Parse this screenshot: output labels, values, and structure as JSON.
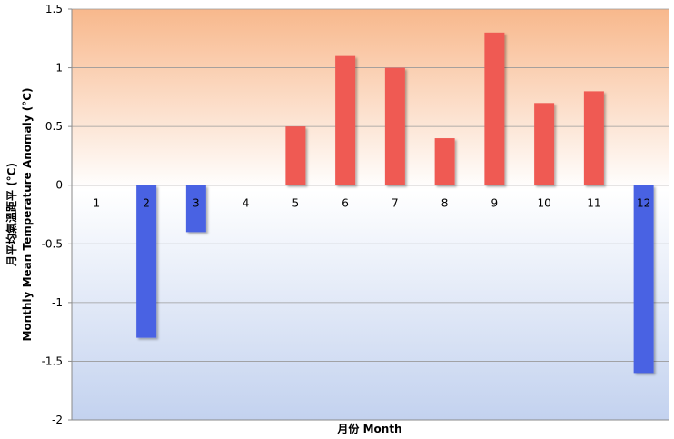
{
  "chart_data": {
    "type": "bar",
    "xlabel": "月份  Month",
    "ylabel_line1": "月平均氣溫距平 (°C)",
    "ylabel_line2": "Monthly Mean Temperature Anomaly (°C)",
    "categories": [
      "1",
      "2",
      "3",
      "4",
      "5",
      "6",
      "7",
      "8",
      "9",
      "10",
      "11",
      "12"
    ],
    "values": [
      0,
      -1.3,
      -0.4,
      0,
      0.5,
      1.1,
      1.0,
      0.4,
      1.3,
      0.7,
      0.8,
      -1.6
    ],
    "ylim": [
      -2,
      1.5
    ],
    "yticks": [
      1.5,
      1,
      0.5,
      0,
      -0.5,
      -1,
      -1.5,
      -2
    ],
    "ytick_labels": [
      "1.5",
      "1",
      "0.5",
      "0",
      "-0.5",
      "-1",
      "-1.5",
      "-2"
    ],
    "grid": true,
    "colors": {
      "positive": "#ef5a53",
      "negative": "#4a62e3",
      "bg_top": "#f8b88c",
      "bg_mid": "#ffffff",
      "bg_bottom": "#c3d2ef",
      "grid": "#9a9a9a"
    }
  }
}
